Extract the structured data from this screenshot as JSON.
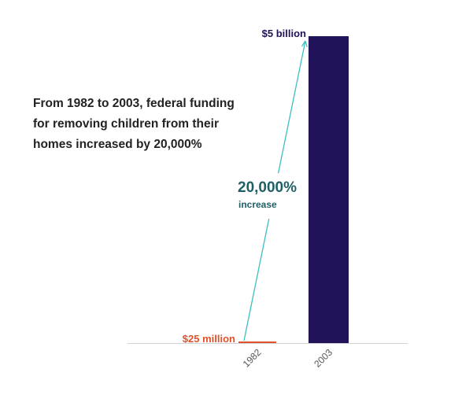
{
  "headline_lines": [
    "From 1982 to 2003, federal funding",
    "for removing children from their",
    "homes increased by 20,000%"
  ],
  "chart_data": {
    "type": "bar",
    "title": "From 1982 to 2003, federal funding for removing children from their homes increased by 20,000%",
    "categories": [
      "1982",
      "2003"
    ],
    "values": [
      25000000,
      5000000000
    ],
    "value_labels": [
      "$25 million",
      "$5 billion"
    ],
    "ylim": [
      0,
      5000000000
    ],
    "grid": false,
    "annotation": {
      "value": "20,000%",
      "text": "increase"
    },
    "colors": {
      "1982": "#e0522a",
      "2003": "#21125a",
      "arrow": "#3bbfc2",
      "annotation": "#1f5f66"
    }
  }
}
